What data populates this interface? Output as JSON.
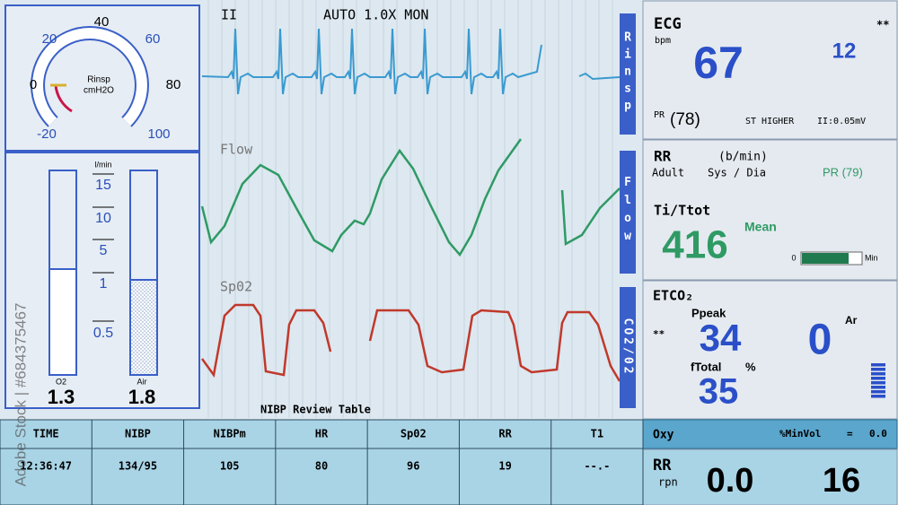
{
  "gauge": {
    "ticks": [
      "-20",
      "0",
      "20",
      "40",
      "60",
      "80",
      "100"
    ],
    "label": "Rinsp",
    "unit": "cmH2O"
  },
  "flowmeter": {
    "unit": "l/min",
    "scale": [
      "15",
      "10",
      "5",
      "1",
      "0.5"
    ],
    "o2": {
      "label": "O2",
      "value": "1.3"
    },
    "air": {
      "label": "Air",
      "value": "1.8"
    }
  },
  "waves": {
    "lead": "II",
    "mode": "AUTO 1.0X MON",
    "labels": [
      "Flow",
      "Sp02"
    ],
    "side_tabs": [
      "Rinsp",
      "Flow",
      "CO2/02"
    ]
  },
  "table": {
    "title": "NIBP Review Table",
    "headers": [
      "TIME",
      "NIBP",
      "NIBPm",
      "HR",
      "Sp02",
      "RR",
      "T1"
    ],
    "row": [
      "12:36:47",
      "134/95",
      "105",
      "80",
      "96",
      "19",
      "--.-"
    ]
  },
  "ecg": {
    "title": "ECG",
    "unit": "bpm",
    "flag": "**",
    "value": "67",
    "secondary": "12",
    "pr_label": "PR",
    "pr_value": "(78)",
    "st": "ST HIGHER",
    "st_value": "II:0.05mV"
  },
  "rr": {
    "title": "RR",
    "unit": "(b/min)",
    "patient": "Adult",
    "pressure": "Sys / Dia",
    "pr": "PR (79)",
    "ratio_label": "Ti/Ttot",
    "mean_label": "Mean",
    "value": "416",
    "bar_min": "0",
    "bar_max": "Min"
  },
  "etco2": {
    "title": "ETCO₂",
    "flag": "**",
    "ppeak_label": "Ppeak",
    "ppeak_value": "34",
    "ar_label": "Ar",
    "ar_value": "0",
    "ftotal_label": "fTotal",
    "ftotal_unit": "%",
    "ftotal_value": "35"
  },
  "oxy": {
    "label": "Oxy",
    "minvol_label": "%MinVol",
    "equals": "=",
    "value": "0.0"
  },
  "rr_rpn": {
    "title": "RR",
    "unit": "rpn",
    "value": "0.0",
    "rate": "16"
  },
  "watermark": "Adobe Stock | #684375467"
}
